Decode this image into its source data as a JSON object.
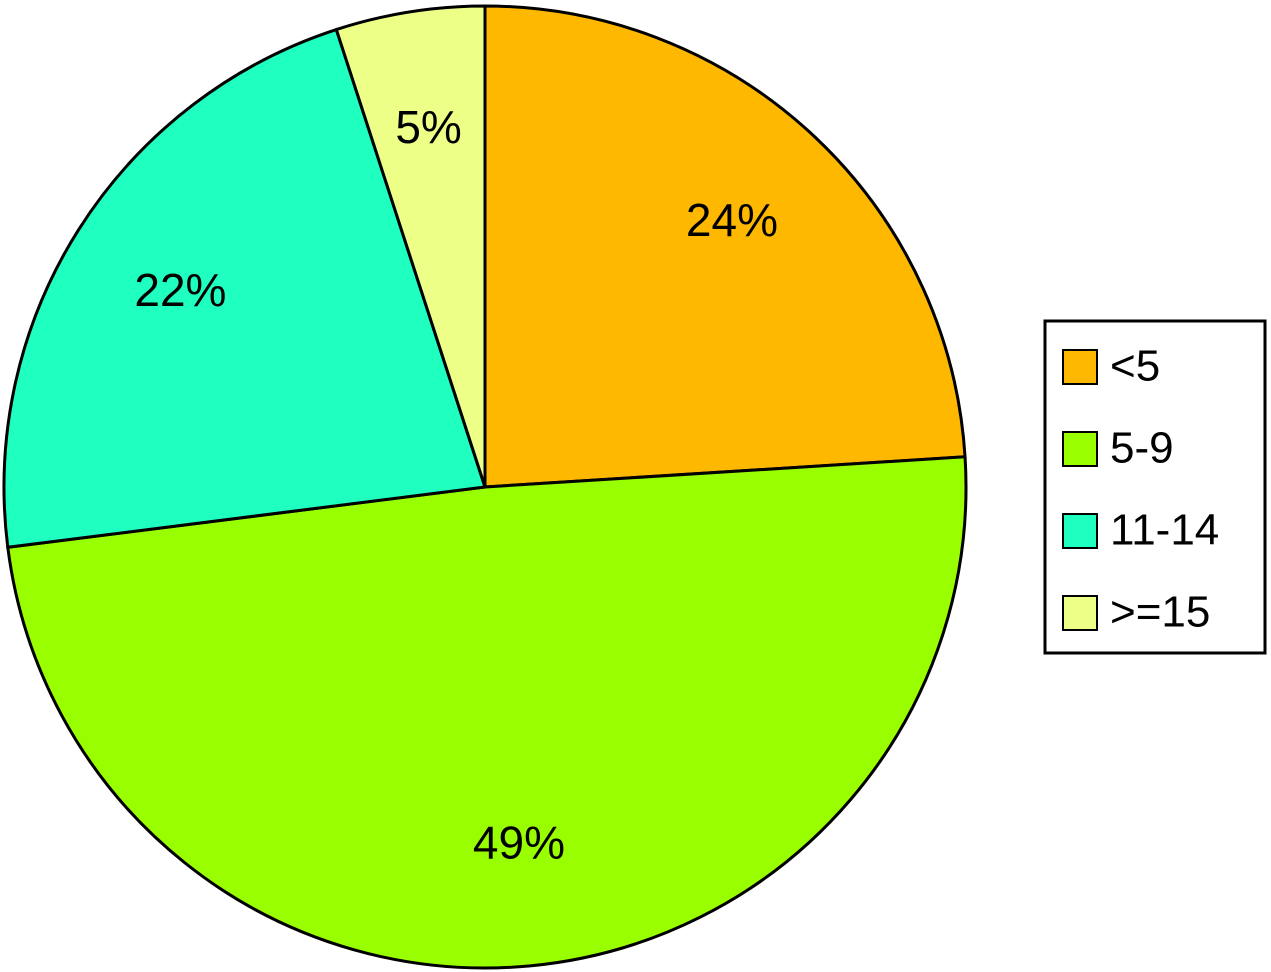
{
  "chart_data": {
    "type": "pie",
    "categories": [
      "<5",
      "5-9",
      "11-14",
      ">=15"
    ],
    "values": [
      24,
      49,
      22,
      5
    ],
    "value_labels": [
      "24%",
      "49%",
      "22%",
      "5%"
    ],
    "colors": [
      "#ffb800",
      "#99ff00",
      "#1effc0",
      "#eeff88"
    ],
    "legend": "right"
  }
}
